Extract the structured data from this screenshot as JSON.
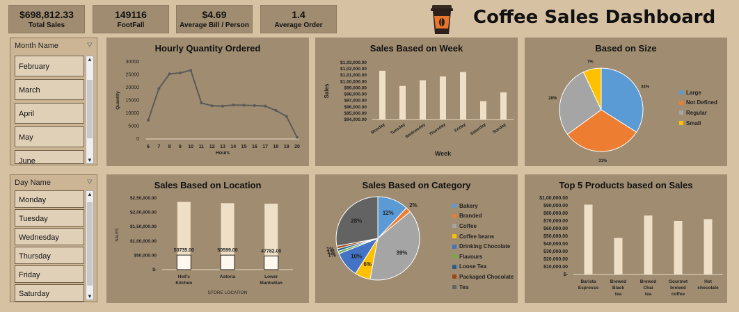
{
  "kpis": [
    {
      "value": "$698,812.33",
      "label": "Total Sales"
    },
    {
      "value": "149116",
      "label": "FootFall"
    },
    {
      "value": "$4.69",
      "label": "Average Bill / Person"
    },
    {
      "value": "1.4",
      "label": "Average Order"
    }
  ],
  "dashboard_title": "Coffee Sales Dashboard",
  "slicers": {
    "month": {
      "header": "Month Name",
      "items": [
        "February",
        "March",
        "April",
        "May",
        "June"
      ]
    },
    "day": {
      "header": "Day Name",
      "items": [
        "Monday",
        "Tuesday",
        "Wednesday",
        "Thursday",
        "Friday",
        "Saturday"
      ]
    }
  },
  "chart_data": [
    {
      "type": "line",
      "title": "Hourly Quantity Ordered",
      "xlabel": "Hours",
      "ylabel": "Quantity",
      "x": [
        6,
        7,
        8,
        9,
        10,
        11,
        12,
        13,
        14,
        15,
        16,
        17,
        18,
        19,
        20
      ],
      "values": [
        7300,
        19600,
        25300,
        25700,
        26700,
        14000,
        12900,
        12800,
        13200,
        13100,
        13000,
        12800,
        11100,
        8800,
        600
      ],
      "yticks": [
        "0",
        "5000",
        "10000",
        "15000",
        "20000",
        "25000",
        "30000"
      ],
      "ylim": [
        0,
        30000
      ],
      "color": "#5a5a5a"
    },
    {
      "type": "bar",
      "title": "Sales Based on Week",
      "xlabel": "Week",
      "ylabel": "Sales",
      "categories": [
        "Monday",
        "Tuesday",
        "Wednesday",
        "Thursday",
        "Friday",
        "Saturday",
        "Sunday"
      ],
      "values": [
        101700,
        99300,
        100200,
        100800,
        101500,
        96900,
        98300
      ],
      "yticks": [
        "$94,000.00",
        "$95,000.00",
        "$96,000.00",
        "$97,000.00",
        "$98,000.00",
        "$99,000.00",
        "$1,00,000.00",
        "$1,01,000.00",
        "$1,02,000.00",
        "$1,03,000.00"
      ],
      "ylim": [
        94000,
        103000
      ],
      "color": "#efdfc6"
    },
    {
      "type": "pie",
      "title": "Based on Size",
      "slices": [
        {
          "name": "Large",
          "value": 34,
          "label": "34%",
          "color": "#5b9bd5"
        },
        {
          "name": "Not Defined",
          "value": 31,
          "label": "31%",
          "color": "#ed7d31"
        },
        {
          "name": "Regular",
          "value": 28,
          "label": "28%",
          "color": "#a5a5a5"
        },
        {
          "name": "Small",
          "value": 7,
          "label": "7%",
          "color": "#ffc000"
        }
      ]
    },
    {
      "type": "bar",
      "title": "Sales Based on Location",
      "xlabel": "STORE LOCATION",
      "ylabel": "SALES",
      "categories": [
        "Hell's Kitchen",
        "Astoria",
        "Lower Manhattan"
      ],
      "series": [
        {
          "values": [
            236500,
            232200,
            230100
          ],
          "color": "#efdfc6"
        },
        {
          "values": [
            50735,
            50599,
            47782
          ],
          "labels": [
            "50735.00",
            "50599.00",
            "47782.00"
          ],
          "color": "#fff8ee"
        }
      ],
      "yticks": [
        "$-",
        "$50,000.00",
        "$1,00,000.00",
        "$1,50,000.00",
        "$2,00,000.00",
        "$2,50,000.00"
      ],
      "ylim": [
        0,
        250000
      ]
    },
    {
      "type": "pie",
      "title": "Sales Based on Category",
      "slices": [
        {
          "name": "Bakery",
          "value": 12,
          "label": "12%",
          "color": "#5b9bd5"
        },
        {
          "name": "Branded",
          "value": 2,
          "label": "2%",
          "color": "#ed7d31"
        },
        {
          "name": "Coffee",
          "value": 39,
          "label": "39%",
          "color": "#a5a5a5"
        },
        {
          "name": "Coffee beans",
          "value": 6,
          "label": "6%",
          "color": "#ffc000"
        },
        {
          "name": "Drinking Chocolate",
          "value": 10,
          "label": "10%",
          "color": "#4472c4"
        },
        {
          "name": "Flavours",
          "value": 1,
          "label": "1%",
          "color": "#70ad47"
        },
        {
          "name": "Loose Tea",
          "value": 1,
          "label": "1%",
          "color": "#255e91"
        },
        {
          "name": "Packaged Chocolate",
          "value": 1,
          "label": "1%",
          "color": "#9e480e"
        },
        {
          "name": "Tea",
          "value": 28,
          "label": "28%",
          "color": "#636363"
        }
      ]
    },
    {
      "type": "bar",
      "title": "Top 5 Products based on Sales",
      "categories": [
        "Barista Espresso",
        "Brewed Black tea",
        "Brewed Chai tea",
        "Gourmet brewed coffee",
        "Hot chocolate"
      ],
      "values": [
        91400,
        47900,
        77100,
        70000,
        72400
      ],
      "yticks": [
        "$-",
        "$10,000.00",
        "$20,000.00",
        "$30,000.00",
        "$40,000.00",
        "$50,000.00",
        "$60,000.00",
        "$70,000.00",
        "$80,000.00",
        "$90,000.00",
        "$1,00,000.00"
      ],
      "ylim": [
        0,
        100000
      ],
      "color": "#efdfc6"
    }
  ]
}
